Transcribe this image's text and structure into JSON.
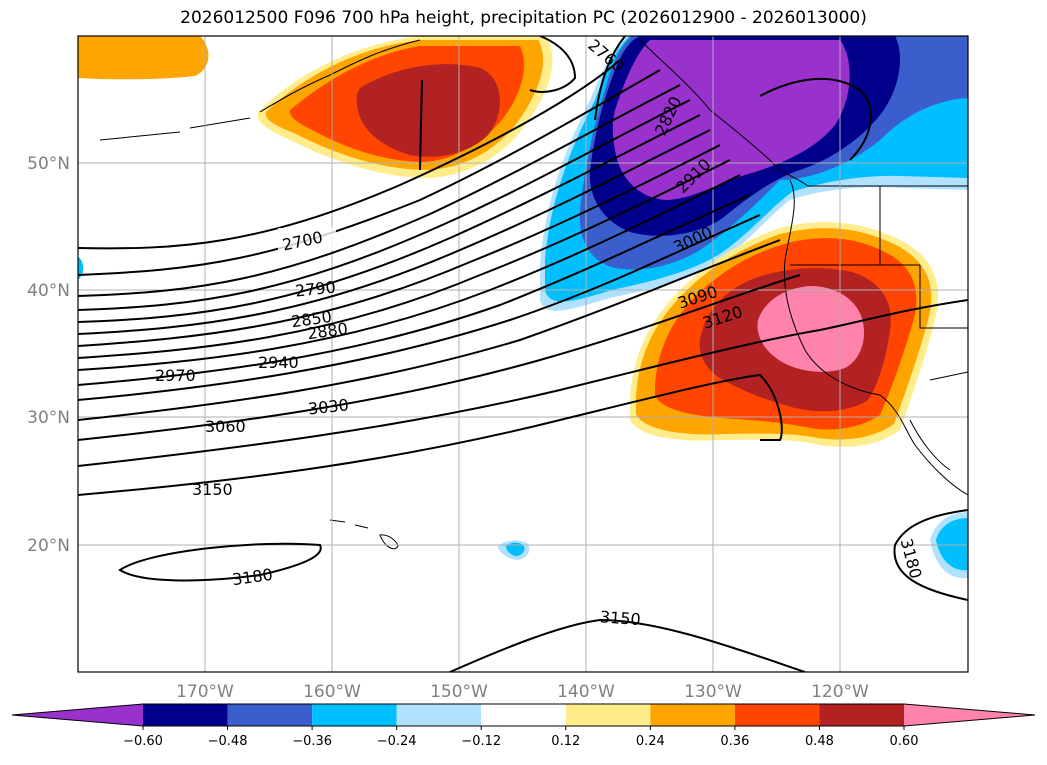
{
  "title": "2026012500 F096 700 hPa height, precipitation PC (2026012900 - 2026013000)",
  "map": {
    "lon_range": [
      -180,
      -110
    ],
    "lat_range": [
      10,
      60
    ],
    "lat_ticks": [
      {
        "value": 20,
        "label": "20°N"
      },
      {
        "value": 30,
        "label": "30°N"
      },
      {
        "value": 40,
        "label": "40°N"
      },
      {
        "value": 50,
        "label": "50°N"
      }
    ],
    "lon_ticks": [
      {
        "value": -170,
        "label": "170°W"
      },
      {
        "value": -160,
        "label": "160°W"
      },
      {
        "value": -150,
        "label": "150°W"
      },
      {
        "value": -140,
        "label": "140°W"
      },
      {
        "value": -130,
        "label": "130°W"
      },
      {
        "value": -120,
        "label": "120°W"
      }
    ],
    "grid": true
  },
  "contour_labels": [
    "2700",
    "2790",
    "2850",
    "2880",
    "2940",
    "2970",
    "3030",
    "3060",
    "3150",
    "3180",
    "3150",
    "3090",
    "3120",
    "3000",
    "2910",
    "2820",
    "2760",
    "3180"
  ],
  "colorbar": {
    "ticks": [
      "−0.60",
      "−0.48",
      "−0.36",
      "−0.24",
      "−0.12",
      "0.12",
      "0.24",
      "0.36",
      "0.48",
      "0.60"
    ],
    "colors": [
      "#9932CC",
      "#00008B",
      "#3A5FCD",
      "#00BFFF",
      "#B0E2FF",
      "#FFFFFF",
      "#FFEC8B",
      "#FFA500",
      "#FF4500",
      "#B22222",
      "#FF83AA"
    ],
    "extend": "both"
  }
}
